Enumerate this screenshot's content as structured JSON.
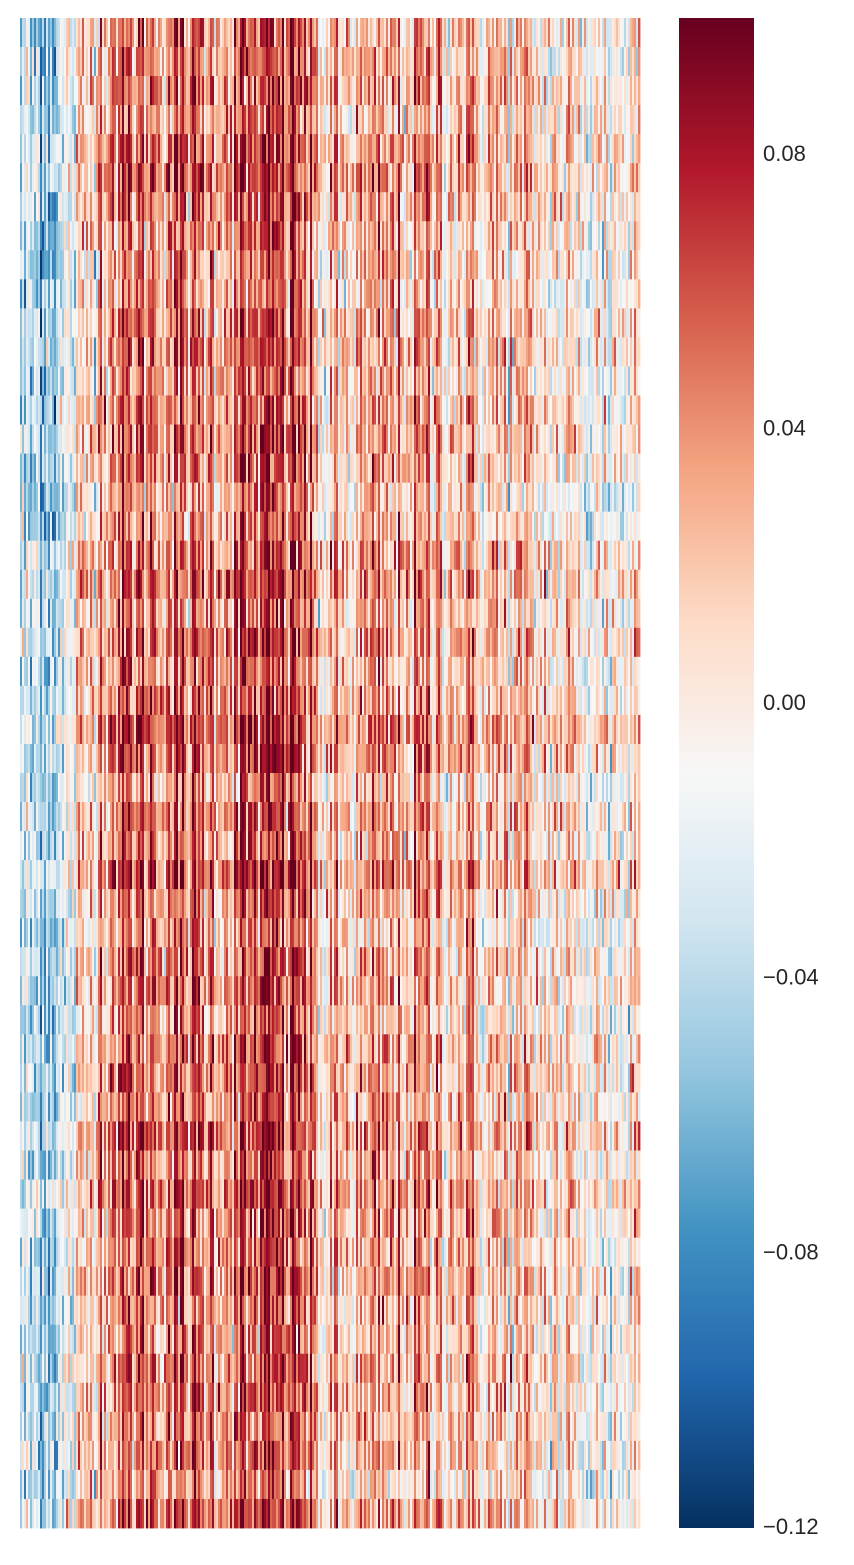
{
  "chart_data": {
    "type": "heatmap",
    "title": "",
    "xlabel": "",
    "ylabel": "",
    "x_tick_labels": [],
    "y_tick_labels": [],
    "grid": false,
    "colormap": "RdBu_r",
    "vmin": -0.12,
    "vmax": 0.1,
    "colorbar": {
      "position": "right",
      "ticks": [
        {
          "value": 0.08,
          "label": "0.08"
        },
        {
          "value": 0.04,
          "label": "0.04"
        },
        {
          "value": 0.0,
          "label": "0.00"
        },
        {
          "value": -0.04,
          "label": "−0.04"
        },
        {
          "value": -0.08,
          "label": "−0.08"
        },
        {
          "value": -0.12,
          "label": "−0.12"
        }
      ]
    },
    "n_rows": 52,
    "n_cols": 310,
    "column_mean_profile": {
      "description": "approximate average value across columns, from left to right",
      "points": [
        {
          "col": 0,
          "value": -0.04
        },
        {
          "col": 20,
          "value": -0.035
        },
        {
          "col": 30,
          "value": 0.0
        },
        {
          "col": 40,
          "value": 0.045
        },
        {
          "col": 60,
          "value": 0.05
        },
        {
          "col": 80,
          "value": 0.045
        },
        {
          "col": 100,
          "value": 0.045
        },
        {
          "col": 120,
          "value": 0.055
        },
        {
          "col": 140,
          "value": 0.06
        },
        {
          "col": 150,
          "value": 0.01
        },
        {
          "col": 170,
          "value": 0.02
        },
        {
          "col": 190,
          "value": 0.03
        },
        {
          "col": 220,
          "value": 0.025
        },
        {
          "col": 250,
          "value": 0.01
        },
        {
          "col": 280,
          "value": 0.0
        },
        {
          "col": 300,
          "value": -0.005
        },
        {
          "col": 309,
          "value": 0.01
        }
      ]
    }
  }
}
